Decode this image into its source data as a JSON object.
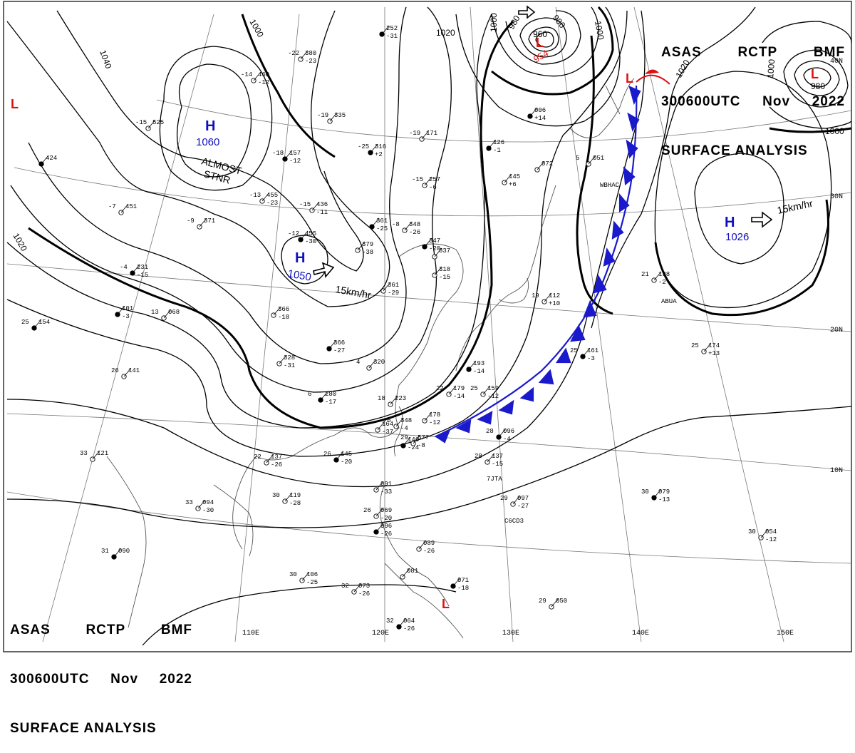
{
  "header": {
    "line1": [
      "ASAS",
      "RCTP",
      "BMF"
    ],
    "line2": [
      "300600UTC",
      "Nov",
      "2022"
    ],
    "line3": "SURFACE ANALYSIS"
  },
  "longitude_labels": [
    "110E",
    "120E",
    "130E",
    "140E",
    "150E"
  ],
  "latitude_labels": [
    "40N",
    "30N",
    "20N",
    "10N"
  ],
  "isobar_labels": [
    "1040",
    "1020",
    "1020",
    "1000",
    "980",
    "980",
    "960",
    "1000",
    "1000",
    "1020",
    "1000",
    "980",
    "1000"
  ],
  "highs": [
    {
      "symbol": "H",
      "pressure": "1060",
      "note1": "ALMOST",
      "note2": "STNR"
    },
    {
      "symbol": "H",
      "pressure": "1050",
      "motion": "15km/hr"
    },
    {
      "symbol": "H",
      "pressure": "1026",
      "motion": "15km/hr"
    }
  ],
  "lows": [
    {
      "symbol": "L",
      "pressure": "954"
    },
    {
      "symbol": "L",
      "pressure": "980"
    },
    {
      "symbol": "L"
    },
    {
      "symbol": "L"
    },
    {
      "symbol": "L"
    }
  ],
  "stations": [
    {
      "t": "-12",
      "p": "455",
      "d": "-30"
    },
    {
      "t": "-15",
      "p": "436",
      "d": "-11"
    },
    {
      "t": "-19",
      "p": "335",
      "d": ""
    },
    {
      "t": "-25",
      "p": "316",
      "d": "+2"
    },
    {
      "t": "-19",
      "p": "171",
      "d": ""
    },
    {
      "t": "-15",
      "p": "257",
      "d": "-6"
    },
    {
      "t": "",
      "p": "361",
      "d": "-25"
    },
    {
      "t": "-8",
      "p": "348",
      "d": "-26"
    },
    {
      "t": "",
      "p": "379",
      "d": "-38"
    },
    {
      "t": "",
      "p": "366",
      "d": "-27"
    },
    {
      "t": "",
      "p": "328",
      "d": "-31"
    },
    {
      "t": "4",
      "p": "320",
      "d": ""
    },
    {
      "t": "6",
      "p": "280",
      "d": "-17"
    },
    {
      "t": "18",
      "p": "223",
      "d": ""
    },
    {
      "t": "",
      "p": "178",
      "d": "-12"
    },
    {
      "t": "",
      "p": "193",
      "d": "-14"
    },
    {
      "t": "22",
      "p": "179",
      "d": "-14"
    },
    {
      "t": "25",
      "p": "159",
      "d": "-12"
    },
    {
      "t": "28",
      "p": "096",
      "d": "-4"
    },
    {
      "t": "28",
      "p": "137",
      "d": "-15"
    },
    {
      "t": "29",
      "p": "097",
      "d": "-27"
    },
    {
      "t": "30",
      "p": "079",
      "d": "-13"
    },
    {
      "t": "30",
      "p": "054",
      "d": "-12"
    },
    {
      "t": "25",
      "p": "174",
      "d": "+13"
    },
    {
      "t": "25",
      "p": "161",
      "d": "-3"
    },
    {
      "t": "21",
      "p": "198",
      "d": "-2"
    },
    {
      "t": "19",
      "p": "112",
      "d": "+10"
    },
    {
      "t": "26",
      "p": "145",
      "d": "-20"
    },
    {
      "t": "30",
      "p": "119",
      "d": "-28"
    },
    {
      "t": "33",
      "p": "094",
      "d": "-30"
    },
    {
      "t": "31",
      "p": "090",
      "d": ""
    },
    {
      "t": "33",
      "p": "121",
      "d": ""
    },
    {
      "t": "22",
      "p": "137",
      "d": "-26"
    },
    {
      "t": "25",
      "p": "154",
      "d": ""
    },
    {
      "t": "26",
      "p": "141",
      "d": ""
    },
    {
      "t": "13",
      "p": "068",
      "d": ""
    },
    {
      "t": "",
      "p": "101",
      "d": "-3"
    },
    {
      "t": "",
      "p": "366",
      "d": "-18"
    },
    {
      "t": "-13",
      "p": "455",
      "d": "-23"
    },
    {
      "t": "-18",
      "p": "157",
      "d": "-12"
    },
    {
      "t": "-14",
      "p": "460",
      "d": "-12"
    },
    {
      "t": "-22",
      "p": "380",
      "d": "-23"
    },
    {
      "t": "",
      "p": "252",
      "d": "-31"
    },
    {
      "t": "",
      "p": "091",
      "d": "-33"
    },
    {
      "t": "26",
      "p": "069",
      "d": "-20"
    },
    {
      "t": "",
      "p": "096",
      "d": "-26"
    },
    {
      "t": "",
      "p": "089",
      "d": "-26"
    },
    {
      "t": "",
      "p": "081",
      "d": ""
    },
    {
      "t": "",
      "p": "071",
      "d": "-18"
    },
    {
      "t": "30",
      "p": "106",
      "d": "-25"
    },
    {
      "t": "32",
      "p": "073",
      "d": "-26"
    },
    {
      "t": "32",
      "p": "064",
      "d": "-26"
    },
    {
      "t": "29",
      "p": "050",
      "d": ""
    },
    {
      "t": "",
      "p": "145",
      "d": "+6"
    },
    {
      "t": "",
      "p": "126",
      "d": "-1"
    },
    {
      "t": "",
      "p": "072",
      "d": ""
    },
    {
      "t": "5",
      "p": "051",
      "d": ""
    },
    {
      "t": "",
      "p": "006",
      "d": "+14"
    },
    {
      "t": "",
      "p": "318",
      "d": "-15"
    },
    {
      "t": "",
      "p": "337",
      "d": ""
    },
    {
      "t": "",
      "p": "347",
      "d": "-20"
    },
    {
      "t": "",
      "p": "361",
      "d": "-29"
    },
    {
      "t": "-9",
      "p": "371",
      "d": ""
    },
    {
      "t": "-4",
      "p": "231",
      "d": "-15"
    },
    {
      "t": "-7",
      "p": "451",
      "d": ""
    },
    {
      "t": "-15",
      "p": "525",
      "d": ""
    },
    {
      "t": "",
      "p": "424",
      "d": ""
    },
    {
      "t": "-6",
      "p": "348",
      "d": "-4"
    },
    {
      "t": "",
      "p": "164",
      "d": "-37"
    },
    {
      "t": "",
      "p": "146",
      "d": "-24"
    },
    {
      "t": "29",
      "p": "577",
      "d": "-8"
    }
  ],
  "ship_labels": [
    "WBHAC",
    "ABUA",
    "7JTA",
    "C6CD3"
  ],
  "colors": {
    "line": "#000000",
    "coast": "#555555",
    "grid": "#777777",
    "high": "#1010c0",
    "low": "#e01010",
    "front": "#1a1acc"
  }
}
